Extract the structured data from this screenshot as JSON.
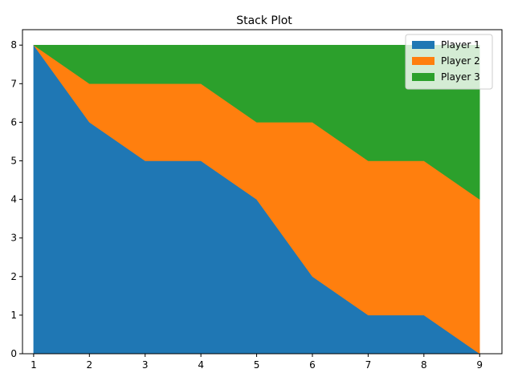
{
  "chart_data": {
    "type": "area",
    "stacked": true,
    "title": "Stack Plot",
    "xlabel": "",
    "ylabel": "",
    "x": [
      1,
      2,
      3,
      4,
      5,
      6,
      7,
      8,
      9
    ],
    "xlim": [
      0.8,
      9.4
    ],
    "ylim": [
      0,
      8.4
    ],
    "xticks": [
      1,
      2,
      3,
      4,
      5,
      6,
      7,
      8,
      9
    ],
    "yticks": [
      0,
      1,
      2,
      3,
      4,
      5,
      6,
      7,
      8
    ],
    "grid": false,
    "legend_position": "top-right",
    "series": [
      {
        "name": "Player 1",
        "color": "#1f77b4",
        "values": [
          8,
          6,
          5,
          5,
          4,
          2,
          1,
          1,
          0
        ]
      },
      {
        "name": "Player 2",
        "color": "#ff7f0e",
        "values": [
          0,
          1,
          2,
          2,
          2,
          4,
          4,
          4,
          4
        ]
      },
      {
        "name": "Player 3",
        "color": "#2ca02c",
        "values": [
          0,
          1,
          1,
          1,
          2,
          2,
          3,
          3,
          4
        ]
      }
    ]
  }
}
